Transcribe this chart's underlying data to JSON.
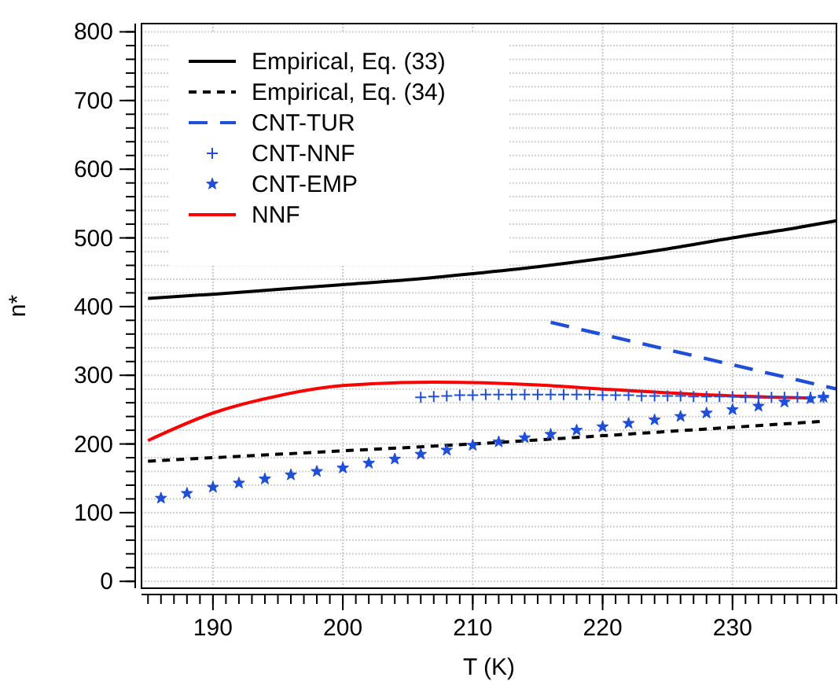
{
  "chart_data": {
    "type": "line",
    "xlabel": "T (K)",
    "ylabel": "n*",
    "xlim": [
      184.5,
      238
    ],
    "xticks": [
      190,
      200,
      210,
      220,
      230
    ],
    "ylim": [
      -10,
      812
    ],
    "yticks": [
      0,
      100,
      200,
      300,
      400,
      500,
      600,
      700,
      800
    ],
    "grid": true,
    "legend": "top left",
    "series": [
      {
        "name": "Empirical, Eq. (33)",
        "color": "#000000",
        "line_style": "solid",
        "x": [
          185,
          190,
          195,
          200,
          205,
          210,
          215,
          220,
          225,
          230,
          235,
          238
        ],
        "values": [
          412,
          418,
          425,
          432,
          439,
          448,
          458,
          470,
          484,
          500,
          515,
          525
        ]
      },
      {
        "name": "Empirical, Eq. (34)",
        "color": "#000000",
        "line_style": "dotted",
        "x": [
          185,
          200,
          210,
          220,
          237
        ],
        "values": [
          175,
          190,
          200,
          212,
          233
        ]
      },
      {
        "name": "CNT-TUR",
        "color": "#1f4fd8",
        "line_style": "dashed",
        "x": [
          216,
          238
        ],
        "values": [
          377,
          280
        ]
      },
      {
        "name": "CNT-NNF",
        "color": "#1f4fd8",
        "type": "scatter",
        "marker": "cross",
        "x": [
          206,
          207,
          208,
          209,
          210,
          211,
          212,
          213,
          214,
          215,
          216,
          217,
          218,
          219,
          220,
          221,
          222,
          223,
          224,
          225,
          226,
          227,
          228,
          229,
          230,
          231,
          232,
          233,
          234,
          235,
          236,
          237
        ],
        "values": [
          268,
          269,
          270,
          271,
          271,
          272,
          272,
          272,
          272,
          272,
          272,
          272,
          272,
          272,
          271,
          271,
          271,
          270,
          270,
          270,
          270,
          269,
          269,
          269,
          269,
          268,
          268,
          268,
          268,
          268,
          268,
          268
        ]
      },
      {
        "name": "CNT-EMP",
        "color": "#1f4fd8",
        "type": "scatter",
        "marker": "star",
        "x": [
          186,
          188,
          190,
          192,
          194,
          196,
          198,
          200,
          202,
          204,
          206,
          208,
          210,
          212,
          214,
          216,
          218,
          220,
          222,
          224,
          226,
          228,
          230,
          232,
          234,
          236,
          237
        ],
        "values": [
          121,
          128,
          137,
          143,
          149,
          155,
          160,
          165,
          172,
          178,
          185,
          191,
          198,
          203,
          209,
          214,
          220,
          225,
          230,
          235,
          240,
          245,
          250,
          255,
          261,
          266,
          268
        ]
      },
      {
        "name": "NNF",
        "color": "#ff0000",
        "line_style": "solid",
        "x": [
          185,
          190,
          195,
          200,
          207,
          215,
          220,
          230,
          236
        ],
        "values": [
          205,
          245,
          270,
          285,
          290,
          286,
          280,
          270,
          267
        ]
      }
    ]
  }
}
